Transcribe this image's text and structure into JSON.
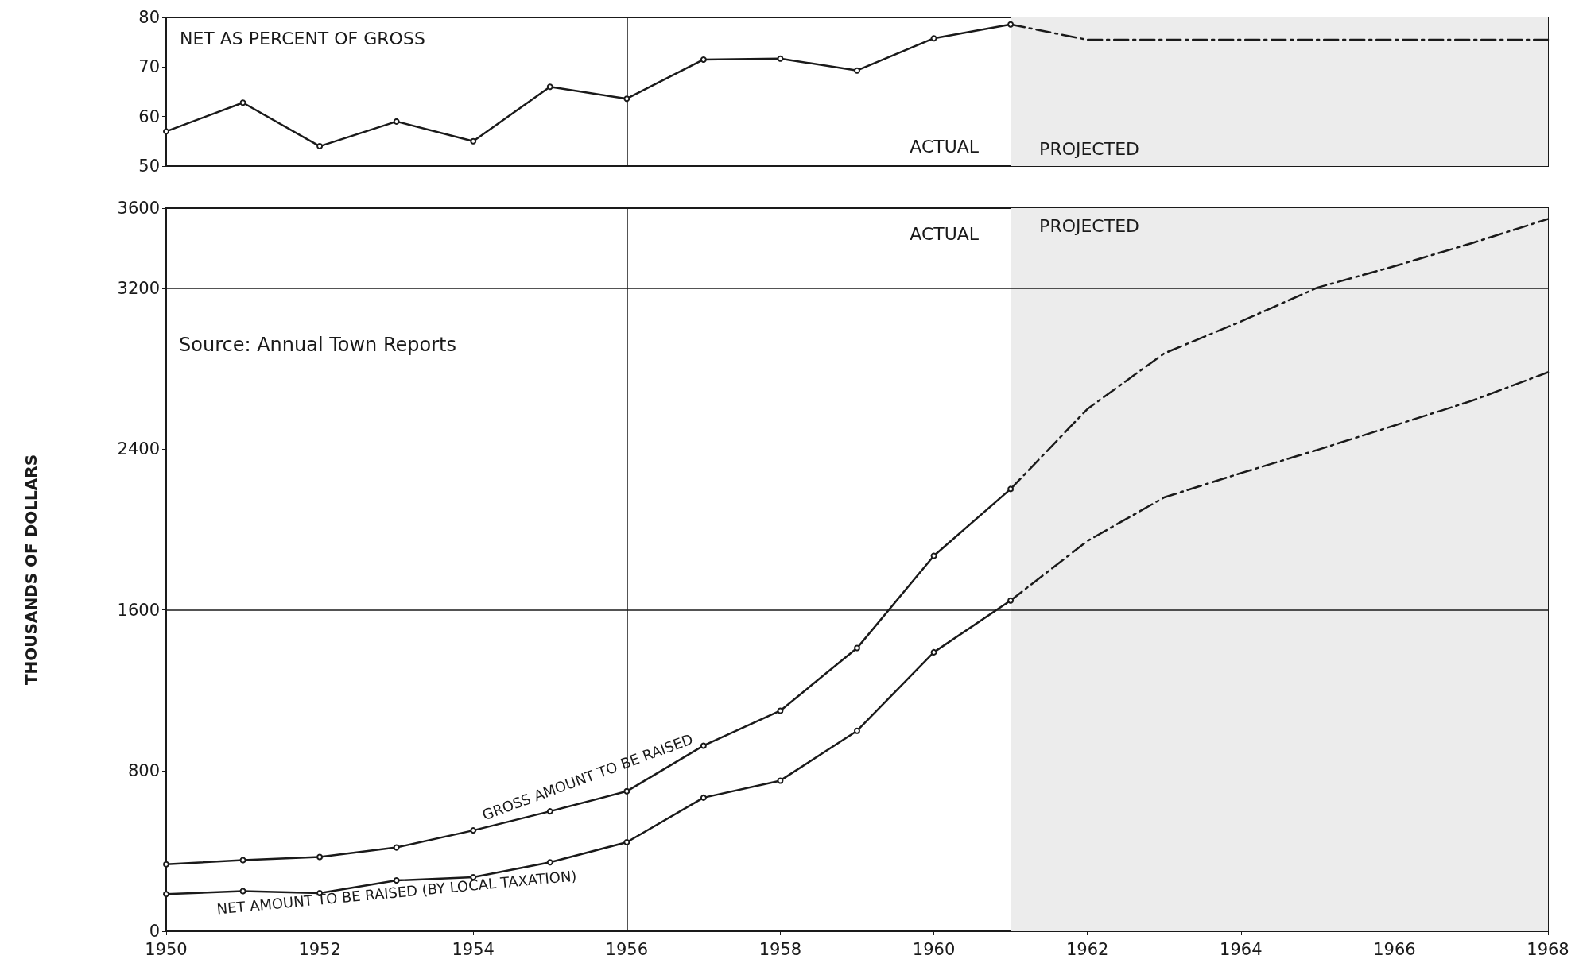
{
  "chart_data": [
    {
      "type": "line",
      "title": "NET AS PERCENT OF GROSS",
      "xlim": [
        1950,
        1968
      ],
      "xticks": [
        1950,
        1952,
        1954,
        1956,
        1958,
        1960,
        1962,
        1964,
        1966,
        1968
      ],
      "ylim": [
        50,
        80
      ],
      "yticks": [
        50,
        60,
        70,
        80
      ],
      "tick_labels": "y",
      "grid": false,
      "legend": false,
      "series": [
        {
          "color": "#1a1a1a",
          "marker": "circle",
          "line_style": "solid",
          "x": [
            1950,
            1951,
            1952,
            1953,
            1954,
            1955,
            1956,
            1957,
            1958,
            1959,
            1960,
            1961
          ],
          "values": [
            57,
            62.8,
            54,
            59,
            55,
            66,
            63.6,
            71.5,
            71.7,
            69.3,
            75.8,
            78.6
          ]
        },
        {
          "color": "#1a1a1a",
          "marker": "none",
          "line_style": "dashed",
          "x": [
            1961,
            1962,
            1963,
            1964,
            1965,
            1966,
            1967,
            1968
          ],
          "values": [
            78.6,
            75.5,
            75.5,
            75.5,
            75.5,
            75.5,
            75.5,
            75.5
          ]
        }
      ],
      "ref_lines": [
        {
          "axis": "x",
          "value": 1956
        }
      ],
      "annotations": [
        {
          "text": "ACTUAL",
          "x": 1961,
          "y": 54
        }
      ],
      "bands": [
        {
          "axis": "x",
          "from": 1961,
          "to": 1968,
          "label": "PROJECTED",
          "color": "#ececec"
        }
      ]
    },
    {
      "type": "line",
      "ylabel": "THOUSANDS OF DOLLARS",
      "xlim": [
        1950,
        1968
      ],
      "xticks": [
        1950,
        1952,
        1954,
        1956,
        1958,
        1960,
        1962,
        1964,
        1966,
        1968
      ],
      "ylim": [
        0,
        3600
      ],
      "yticks": [
        0,
        800,
        1600,
        2400,
        3200,
        3600
      ],
      "grid": false,
      "legend": false,
      "annotations": [
        "Source: Annual Town Reports",
        {
          "text": "ACTUAL",
          "x": 1961,
          "y": 3470
        }
      ],
      "series": [
        {
          "name": "GROSS AMOUNT TO BE RAISED",
          "color": "#1a1a1a",
          "marker": "circle",
          "line_style": "solid",
          "x": [
            1950,
            1951,
            1952,
            1953,
            1954,
            1955,
            1956,
            1957,
            1958,
            1959,
            1960,
            1961
          ],
          "values": [
            333,
            354,
            370,
            417,
            502,
            597,
            697,
            924,
            1098,
            1410,
            1869,
            2202
          ]
        },
        {
          "name": "NET AMOUNT TO BE RAISED (BY LOCAL TAXATION)",
          "color": "#1a1a1a",
          "marker": "circle",
          "line_style": "solid",
          "x": [
            1950,
            1951,
            1952,
            1953,
            1954,
            1955,
            1956,
            1957,
            1958,
            1959,
            1960,
            1961
          ],
          "values": [
            185,
            200,
            190,
            253,
            269,
            343,
            443,
            665,
            750,
            998,
            1389,
            1647
          ]
        },
        {
          "color": "#1a1a1a",
          "marker": "none",
          "line_style": "dashed",
          "x": [
            1961,
            1962,
            1963,
            1964,
            1965,
            1966,
            1967,
            1968
          ],
          "values": [
            2202,
            2600,
            2877,
            3036,
            3205,
            3311,
            3425,
            3546
          ]
        },
        {
          "color": "#1a1a1a",
          "marker": "none",
          "line_style": "dashed",
          "x": [
            1961,
            1962,
            1963,
            1964,
            1965,
            1966,
            1967,
            1968
          ],
          "values": [
            1647,
            1943,
            2160,
            2281,
            2397,
            2518,
            2640,
            2783
          ]
        }
      ],
      "ref_lines": [
        {
          "axis": "x",
          "value": 1956
        },
        {
          "axis": "y",
          "value": 1600
        },
        {
          "axis": "y",
          "value": 3200
        }
      ],
      "bands": [
        {
          "axis": "x",
          "from": 1961,
          "to": 1968,
          "label": "PROJECTED",
          "color": "#ececec"
        }
      ]
    }
  ]
}
